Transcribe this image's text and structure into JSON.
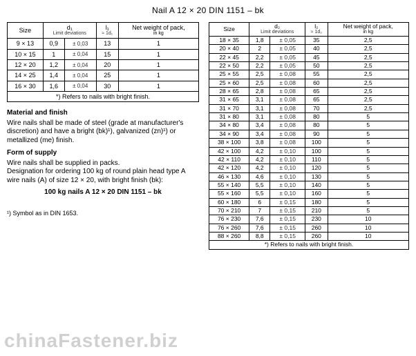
{
  "title": "Nail A 12 × 20 DIN 1151 – bk",
  "headers": {
    "size": "Size",
    "d1": "d₁",
    "d1_sub": "Limit\ndeviations",
    "l1": "l₁",
    "l1_sub": "≈ 1d₁",
    "d2": "d₂",
    "d2_sub": "Limit\ndeviations",
    "l2": "l₂",
    "l2_sub": "≈ 1d₂",
    "weight": "Net weight\nof pack,",
    "weight_unit": "in kg"
  },
  "left_rows": [
    {
      "size": "9 × 13",
      "d": "0,9",
      "dev": "± 0,03",
      "l": "13",
      "w": "1"
    },
    {
      "size": "10 × 15",
      "d": "1",
      "dev": "± 0,04",
      "l": "15",
      "w": "1"
    },
    {
      "size": "12 × 20",
      "d": "1,2",
      "dev": "± 0,04",
      "l": "20",
      "w": "1"
    },
    {
      "size": "14 × 25",
      "d": "1,4",
      "dev": "± 0,04",
      "l": "25",
      "w": "1",
      "gap": true
    },
    {
      "size": "16 × 30",
      "d": "1,6",
      "dev": "± 0,04",
      "l": "30",
      "w": "1"
    }
  ],
  "left_footnote": "*) Refers to nails with bright finish.",
  "right_rows": [
    {
      "size": "18 × 35",
      "d": "1,8",
      "dev": "± 0,05",
      "l": "35",
      "w": "2,5"
    },
    {
      "size": "20 × 40",
      "d": "2",
      "dev": "± 0,05",
      "l": "40",
      "w": "2,5"
    },
    {
      "size": "22 × 45",
      "d": "2,2",
      "dev": "± 0,05",
      "l": "45",
      "w": "2,5"
    },
    {
      "size": "22 × 50",
      "d": "2,2",
      "dev": "± 0,05",
      "l": "50",
      "w": "2,5",
      "gap": true
    },
    {
      "size": "25 × 55",
      "d": "2,5",
      "dev": "± 0,08",
      "l": "55",
      "w": "2,5"
    },
    {
      "size": "25 × 60",
      "d": "2,5",
      "dev": "± 0,08",
      "l": "60",
      "w": "2,5"
    },
    {
      "size": "28 × 65",
      "d": "2,8",
      "dev": "± 0,08",
      "l": "65",
      "w": "2,5",
      "gap": true
    },
    {
      "size": "31 × 65",
      "d": "3,1",
      "dev": "± 0,08",
      "l": "65",
      "w": "2,5"
    },
    {
      "size": "31 × 70",
      "d": "3,1",
      "dev": "± 0,08",
      "l": "70",
      "w": "2,5"
    },
    {
      "size": "31 × 80",
      "d": "3,1",
      "dev": "± 0,08",
      "l": "80",
      "w": "5",
      "gap": true
    },
    {
      "size": "34 × 80",
      "d": "3,4",
      "dev": "± 0,08",
      "l": "80",
      "w": "5"
    },
    {
      "size": "34 × 90",
      "d": "3,4",
      "dev": "± 0,08",
      "l": "90",
      "w": "5"
    },
    {
      "size": "38 × 100",
      "d": "3,8",
      "dev": "± 0,08",
      "l": "100",
      "w": "5",
      "gap": true
    },
    {
      "size": "42 × 100",
      "d": "4,2",
      "dev": "± 0,10",
      "l": "100",
      "w": "5"
    },
    {
      "size": "42 × 110",
      "d": "4,2",
      "dev": "± 0,10",
      "l": "110",
      "w": "5"
    },
    {
      "size": "42 × 120",
      "d": "4,2",
      "dev": "± 0,10",
      "l": "120",
      "w": "5",
      "gap": true
    },
    {
      "size": "46 × 130",
      "d": "4,6",
      "dev": "± 0,10",
      "l": "130",
      "w": "5"
    },
    {
      "size": "55 × 140",
      "d": "5,5",
      "dev": "± 0,10",
      "l": "140",
      "w": "5"
    },
    {
      "size": "55 × 160",
      "d": "5,5",
      "dev": "± 0,10",
      "l": "160",
      "w": "5",
      "gap": true
    },
    {
      "size": "60 × 180",
      "d": "6",
      "dev": "± 0,15",
      "l": "180",
      "w": "5"
    },
    {
      "size": "70 × 210",
      "d": "7",
      "dev": "± 0,15",
      "l": "210",
      "w": "5"
    },
    {
      "size": "76 × 230",
      "d": "7,6",
      "dev": "± 0,15",
      "l": "230",
      "w": "10",
      "gap": true
    },
    {
      "size": "76 × 260",
      "d": "7,6",
      "dev": "± 0,15",
      "l": "260",
      "w": "10"
    },
    {
      "size": "88 × 260",
      "d": "8,8",
      "dev": "± 0,15",
      "l": "260",
      "w": "10"
    }
  ],
  "right_footnote": "*) Refers to nails with bright finish.",
  "text": {
    "material_h": "Material and finish",
    "material_p": "Wire nails shall be made of steel (grade at manufacturer's discretion) and have a bright (bk)¹), galvanized (zn)¹) or metallized (me) finish.",
    "form_h": "Form of supply",
    "form_p1": "Wire nails shall be supplied in packs.",
    "form_p2": "Designation for ordering 100 kg of round plain head type A wire nails (A) of size 12 × 20, with bright finish (bk):",
    "example": "100 kg nails A 12 × 20 DIN 1151 – bk",
    "note": "¹) Symbol as in DIN 1653."
  },
  "watermark": "chinaFastener.biz"
}
